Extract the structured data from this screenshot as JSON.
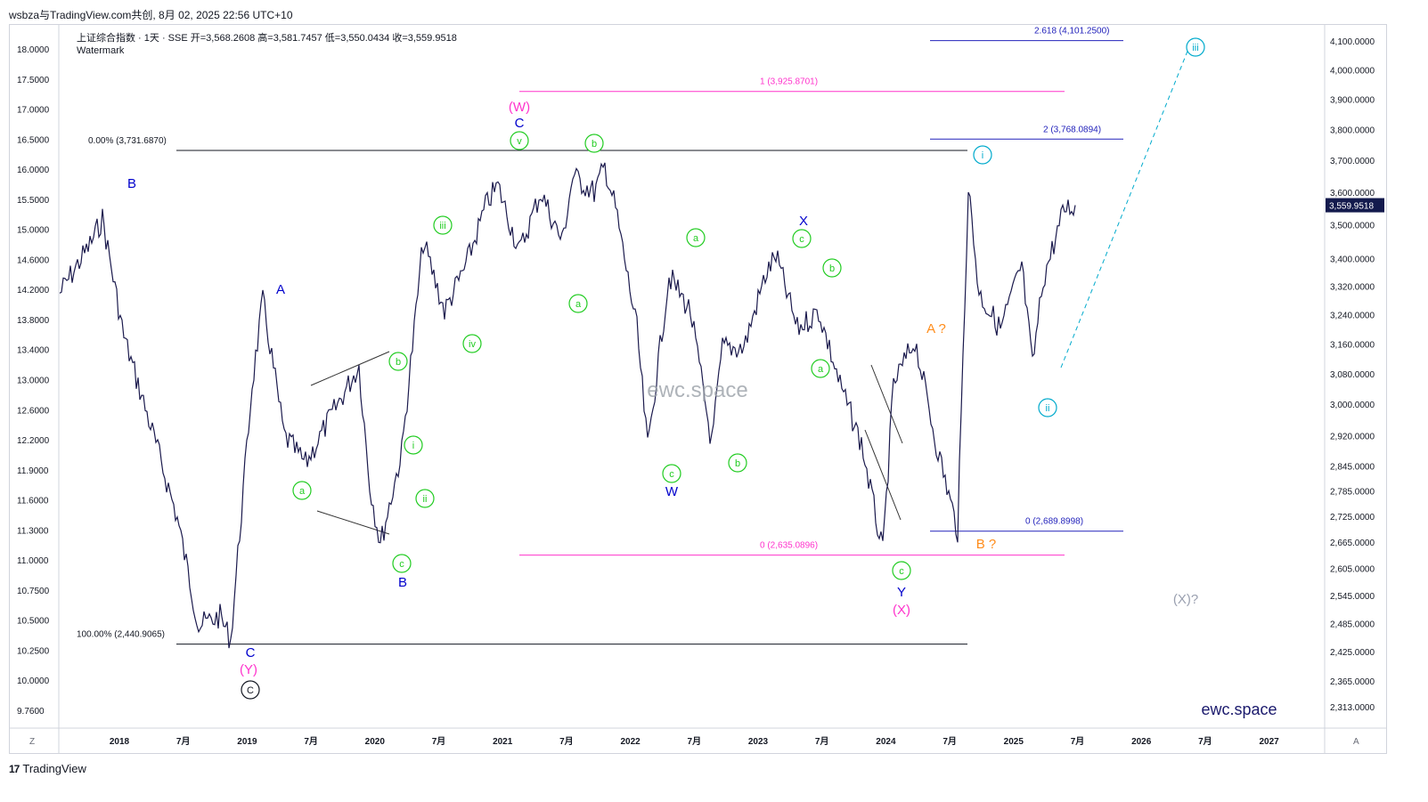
{
  "header": {
    "text": "wsbza与TradingView.com共创, 8月 02, 2025 22:56 UTC+10"
  },
  "legend": {
    "line1": "上证综合指数 · 1天 · SSE  开=3,568.2608  高=3,581.7457  低=3,550.0434  收=3,559.9518",
    "line2": "Watermark"
  },
  "footer": {
    "logo": "17",
    "brand": "TradingView"
  },
  "corners": {
    "left": "Z",
    "right": "A"
  },
  "colors": {
    "price": "#1b1a4d",
    "magenta": "#ff33cc",
    "green": "#22cc22",
    "blue": "#0000cc",
    "cyan": "#00aacc",
    "orange": "#ff8c1a",
    "black": "#131722",
    "grid": "#d1d4dc",
    "fib_blue": "#2222bb",
    "gray_label": "#9aa0b0"
  },
  "chart_data": {
    "type": "line",
    "title": "上证综合指数 · 1天 · SSE",
    "last_price": "3,559.9518",
    "x_ticks": [
      "2018",
      "7月",
      "2019",
      "7月",
      "2020",
      "7月",
      "2021",
      "7月",
      "2022",
      "7月",
      "2023",
      "7月",
      "2024",
      "7月",
      "2025",
      "7月",
      "2026",
      "7月",
      "2027"
    ],
    "left_axis_ticks": [
      "18.0000",
      "17.5000",
      "17.0000",
      "16.5000",
      "16.0000",
      "15.5000",
      "15.0000",
      "14.6000",
      "14.2000",
      "13.8000",
      "13.4000",
      "13.0000",
      "12.6000",
      "12.2000",
      "11.9000",
      "11.6000",
      "11.3000",
      "11.0000",
      "10.7500",
      "10.5000",
      "10.2500",
      "10.0000",
      "9.7600"
    ],
    "right_axis_ticks": [
      "4,100.0000",
      "4,000.0000",
      "3,900.0000",
      "3,800.0000",
      "3,700.0000",
      "3,600.0000",
      "3,500.0000",
      "3,400.0000",
      "3,320.0000",
      "3,240.0000",
      "3,160.0000",
      "3,080.0000",
      "3,000.0000",
      "2,920.0000",
      "2,845.0000",
      "2,785.0000",
      "2,725.0000",
      "2,665.0000",
      "2,605.0000",
      "2,545.0000",
      "2,485.0000",
      "2,425.0000",
      "2,365.0000",
      "2,313.0000"
    ],
    "series": [
      {
        "x": [
          "2017-09",
          "2017-12",
          "2018-01",
          "2018-03",
          "2018-06",
          "2018-08",
          "2018-10",
          "2018-12",
          "2019-01",
          "2019-03",
          "2019-04",
          "2019-06",
          "2019-08",
          "2019-10",
          "2019-12",
          "2020-01",
          "2020-02",
          "2020-03",
          "2020-05",
          "2020-07",
          "2020-09",
          "2020-11",
          "2021-01",
          "2021-02",
          "2021-04",
          "2021-06",
          "2021-08",
          "2021-09",
          "2021-11",
          "2021-12",
          "2022-01",
          "2022-03",
          "2022-04",
          "2022-06",
          "2022-08",
          "2022-10",
          "2022-11",
          "2023-01",
          "2023-03",
          "2023-04",
          "2023-06",
          "2023-08",
          "2023-10",
          "2023-12",
          "2024-02",
          "2024-03",
          "2024-05",
          "2024-07",
          "2024-09",
          "2024-10",
          "2024-11",
          "2025-01",
          "2025-03",
          "2025-04",
          "2025-05",
          "2025-07",
          "2025-08"
        ],
        "y": [
          3300,
          3450,
          3520,
          3180,
          2900,
          2720,
          2480,
          2500,
          2450,
          3050,
          3280,
          2920,
          2850,
          2950,
          3050,
          3100,
          2800,
          2660,
          2880,
          3450,
          3250,
          3380,
          3570,
          3620,
          3420,
          3600,
          3450,
          3650,
          3600,
          3680,
          3550,
          3200,
          2890,
          3350,
          3250,
          2900,
          3150,
          3150,
          3350,
          3410,
          3200,
          3250,
          3050,
          2900,
          2640,
          3050,
          3170,
          2900,
          2690,
          3620,
          3300,
          3200,
          3380,
          3100,
          3340,
          3550,
          3560
        ]
      }
    ],
    "wave_labels": [
      {
        "text": "B",
        "color": "blue"
      },
      {
        "text": "A",
        "color": "blue"
      },
      {
        "text": "C",
        "color": "blue"
      },
      {
        "text": "(Y)",
        "color": "magenta"
      },
      {
        "text": "C",
        "color": "black",
        "circled": true
      },
      {
        "text": "a",
        "color": "green",
        "circled": true
      },
      {
        "text": "b",
        "color": "green",
        "circled": true
      },
      {
        "text": "c",
        "color": "green",
        "circled": true
      },
      {
        "text": "B",
        "color": "blue"
      },
      {
        "text": "i",
        "color": "green",
        "circled": true
      },
      {
        "text": "ii",
        "color": "green",
        "circled": true
      },
      {
        "text": "iii",
        "color": "green",
        "circled": true
      },
      {
        "text": "iv",
        "color": "green",
        "circled": true
      },
      {
        "text": "v",
        "color": "green",
        "circled": true
      },
      {
        "text": "C",
        "color": "blue"
      },
      {
        "text": "(W)",
        "color": "magenta"
      },
      {
        "text": "a",
        "color": "green",
        "circled": true
      },
      {
        "text": "b",
        "color": "green",
        "circled": true
      },
      {
        "text": "c",
        "color": "green",
        "circled": true
      },
      {
        "text": "W",
        "color": "blue"
      },
      {
        "text": "a",
        "color": "green",
        "circled": true
      },
      {
        "text": "b",
        "color": "green",
        "circled": true
      },
      {
        "text": "c",
        "color": "green",
        "circled": true
      },
      {
        "text": "X",
        "color": "blue"
      },
      {
        "text": "b",
        "color": "green",
        "circled": true
      },
      {
        "text": "a",
        "color": "green",
        "circled": true
      },
      {
        "text": "c",
        "color": "green",
        "circled": true
      },
      {
        "text": "Y",
        "color": "blue"
      },
      {
        "text": "(X)",
        "color": "magenta"
      },
      {
        "text": "A ?",
        "color": "orange"
      },
      {
        "text": "B ?",
        "color": "orange"
      },
      {
        "text": "i",
        "color": "cyan",
        "circled": true
      },
      {
        "text": "ii",
        "color": "cyan",
        "circled": true
      },
      {
        "text": "iii",
        "color": "cyan",
        "circled": true
      },
      {
        "text": "(X)?",
        "color": "gray_label"
      }
    ],
    "fib_levels": [
      {
        "label": "0.00% (3,731.6870)",
        "value": 3731.687,
        "color": "black"
      },
      {
        "label": "100.00% (2,440.9065)",
        "value": 2440.9065,
        "color": "black"
      },
      {
        "label": "1 (3,925.8701)",
        "value": 3925.8701,
        "color": "magenta"
      },
      {
        "label": "0 (2,635.0896)",
        "value": 2635.0896,
        "color": "magenta"
      },
      {
        "label": "2.618 (4,101.2500)",
        "value": 4101.25,
        "color": "fib_blue"
      },
      {
        "label": "2 (3,768.0894)",
        "value": 3768.0894,
        "color": "fib_blue"
      },
      {
        "label": "0 (2,689.8998)",
        "value": 2689.8998,
        "color": "fib_blue"
      }
    ],
    "watermarks": [
      "ewc.space",
      "ewc.space"
    ],
    "grid": false
  }
}
